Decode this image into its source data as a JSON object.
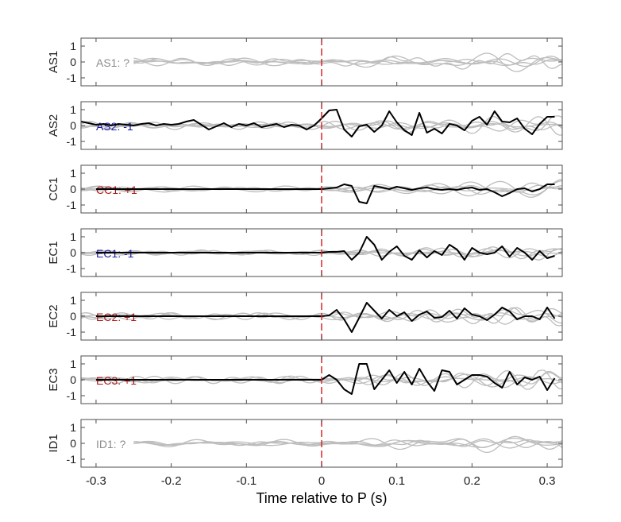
{
  "chart_data": {
    "type": "line",
    "xlabel": "Time relative to P (s)",
    "xlim": [
      -0.32,
      0.32
    ],
    "ylim": [
      -1.5,
      1.5
    ],
    "x_ticks": [
      -0.3,
      -0.2,
      -0.1,
      0,
      0.1,
      0.2,
      0.3
    ],
    "x_tick_labels": [
      "-0.3",
      "-0.2",
      "-0.1",
      "0",
      "0.1",
      "0.2",
      "0.3"
    ],
    "y_ticks": [
      1,
      0,
      -1
    ],
    "y_tick_labels": [
      "1",
      "0",
      "-1"
    ],
    "marker_x": 0,
    "colors": {
      "reference": "#d62728",
      "traces_gray": "#bdbdbd",
      "trace_black": "#000000",
      "label_gray": "#8c8c8c",
      "label_blue": "#1a1aa8",
      "label_red": "#b01818"
    },
    "panels": [
      {
        "id": "AS1",
        "ylabel": "AS1",
        "annotation": "AS1: ?",
        "label_color": "gray",
        "black_trace": null
      },
      {
        "id": "AS2",
        "ylabel": "AS2",
        "annotation": "AS2: -1",
        "label_color": "blue",
        "black_trace": {
          "x": [
            -0.32,
            -0.31,
            -0.3,
            -0.29,
            -0.28,
            -0.27,
            -0.26,
            -0.25,
            -0.24,
            -0.23,
            -0.22,
            -0.21,
            -0.2,
            -0.19,
            -0.18,
            -0.17,
            -0.16,
            -0.15,
            -0.14,
            -0.13,
            -0.12,
            -0.11,
            -0.1,
            -0.09,
            -0.08,
            -0.07,
            -0.06,
            -0.05,
            -0.04,
            -0.03,
            -0.02,
            -0.01,
            0,
            0.01,
            0.02,
            0.03,
            0.04,
            0.05,
            0.06,
            0.07,
            0.08,
            0.09,
            0.1,
            0.11,
            0.12,
            0.13,
            0.14,
            0.15,
            0.16,
            0.17,
            0.18,
            0.19,
            0.2,
            0.21,
            0.22,
            0.23,
            0.24,
            0.25,
            0.26,
            0.27,
            0.28,
            0.29,
            0.3,
            0.31
          ],
          "y": [
            0.25,
            0.15,
            0.05,
            0.1,
            0.0,
            0.1,
            0.05,
            0.0,
            0.1,
            0.15,
            0.0,
            0.1,
            0.05,
            0.1,
            0.25,
            0.35,
            0.05,
            -0.25,
            -0.05,
            0.15,
            -0.1,
            0.1,
            0.0,
            0.15,
            -0.1,
            0.0,
            0.1,
            -0.1,
            0.05,
            0.0,
            -0.25,
            0.0,
            0.45,
            0.95,
            1.0,
            -0.25,
            -0.7,
            -0.05,
            0.05,
            -0.4,
            0.0,
            0.9,
            0.2,
            -0.3,
            -0.6,
            0.8,
            -0.45,
            -0.2,
            -0.5,
            0.1,
            0.0,
            -0.3,
            0.3,
            0.55,
            0.05,
            0.9,
            0.25,
            0.2,
            0.45,
            -0.2,
            -0.55,
            0.1,
            0.55,
            0.55
          ]
        }
      },
      {
        "id": "CC1",
        "ylabel": "CC1",
        "annotation": "CC1: +1",
        "label_color": "red",
        "black_trace": {
          "x": [
            -0.3,
            -0.2,
            -0.1,
            0,
            0.01,
            0.02,
            0.03,
            0.04,
            0.05,
            0.06,
            0.07,
            0.08,
            0.09,
            0.1,
            0.11,
            0.12,
            0.13,
            0.14,
            0.15,
            0.16,
            0.17,
            0.18,
            0.19,
            0.2,
            0.21,
            0.22,
            0.23,
            0.24,
            0.25,
            0.26,
            0.27,
            0.28,
            0.29,
            0.3,
            0.31
          ],
          "y": [
            0.0,
            0.0,
            0.0,
            0.0,
            0.05,
            0.1,
            0.3,
            0.2,
            -0.8,
            -0.9,
            0.2,
            0.1,
            0.0,
            0.15,
            0.05,
            -0.05,
            0.05,
            0.1,
            0.0,
            -0.05,
            0.0,
            -0.05,
            0.05,
            0.1,
            -0.05,
            0.0,
            -0.2,
            -0.45,
            -0.25,
            0.0,
            0.05,
            -0.15,
            0.0,
            0.3,
            0.3
          ]
        }
      },
      {
        "id": "EC1",
        "ylabel": "EC1",
        "annotation": "EC1: -1",
        "label_color": "blue",
        "black_trace": {
          "x": [
            -0.3,
            -0.2,
            -0.1,
            0,
            0.01,
            0.02,
            0.03,
            0.04,
            0.05,
            0.06,
            0.07,
            0.08,
            0.09,
            0.1,
            0.11,
            0.12,
            0.13,
            0.14,
            0.15,
            0.16,
            0.17,
            0.18,
            0.19,
            0.2,
            0.21,
            0.22,
            0.23,
            0.24,
            0.25,
            0.26,
            0.27,
            0.28,
            0.29,
            0.3,
            0.31
          ],
          "y": [
            0.0,
            0.0,
            0.0,
            0.0,
            0.05,
            0.05,
            0.1,
            -0.45,
            0.0,
            1.0,
            0.5,
            -0.45,
            0.05,
            0.4,
            -0.2,
            -0.45,
            0.15,
            -0.3,
            0.1,
            -0.15,
            0.5,
            0.2,
            -0.45,
            0.3,
            0.0,
            -0.1,
            0.0,
            0.4,
            -0.25,
            0.3,
            0.0,
            -0.45,
            0.1,
            -0.35,
            -0.2
          ]
        }
      },
      {
        "id": "EC2",
        "ylabel": "EC2",
        "annotation": "EC2: +1",
        "label_color": "red",
        "black_trace": {
          "x": [
            -0.3,
            -0.2,
            -0.1,
            0,
            0.01,
            0.02,
            0.03,
            0.04,
            0.05,
            0.06,
            0.07,
            0.08,
            0.09,
            0.1,
            0.11,
            0.12,
            0.13,
            0.14,
            0.15,
            0.16,
            0.17,
            0.18,
            0.19,
            0.2,
            0.21,
            0.22,
            0.23,
            0.24,
            0.25,
            0.26,
            0.27,
            0.28,
            0.29,
            0.3,
            0.31
          ],
          "y": [
            0.0,
            0.0,
            0.0,
            0.0,
            0.05,
            0.4,
            -0.2,
            -1.0,
            -0.1,
            0.85,
            0.35,
            -0.15,
            0.4,
            0.0,
            0.25,
            -0.3,
            0.1,
            0.3,
            -0.1,
            -0.05,
            0.35,
            -0.15,
            0.5,
            0.1,
            0.0,
            -0.25,
            0.1,
            0.55,
            0.3,
            -0.2,
            0.0,
            0.0,
            -0.2,
            0.55,
            -0.15
          ]
        }
      },
      {
        "id": "EC3",
        "ylabel": "EC3",
        "annotation": "EC3: +1",
        "label_color": "red",
        "black_trace": {
          "x": [
            -0.3,
            -0.2,
            -0.1,
            0,
            0.01,
            0.02,
            0.03,
            0.04,
            0.05,
            0.06,
            0.07,
            0.08,
            0.09,
            0.1,
            0.11,
            0.12,
            0.13,
            0.14,
            0.15,
            0.16,
            0.17,
            0.18,
            0.19,
            0.2,
            0.21,
            0.22,
            0.23,
            0.24,
            0.25,
            0.26,
            0.27,
            0.28,
            0.29,
            0.3,
            0.31
          ],
          "y": [
            0.0,
            0.0,
            0.0,
            0.0,
            0.3,
            0.0,
            -0.6,
            -0.9,
            1.0,
            1.0,
            -0.6,
            0.0,
            0.6,
            -0.2,
            0.5,
            -0.3,
            0.7,
            -0.1,
            -0.7,
            0.6,
            0.5,
            -0.3,
            0.0,
            0.3,
            0.3,
            0.2,
            -0.2,
            -0.5,
            0.5,
            -0.3,
            0.15,
            0.0,
            0.2,
            -0.65,
            0.1
          ]
        }
      },
      {
        "id": "ID1",
        "ylabel": "ID1",
        "annotation": "ID1: ?",
        "label_color": "gray",
        "black_trace": null
      }
    ]
  }
}
